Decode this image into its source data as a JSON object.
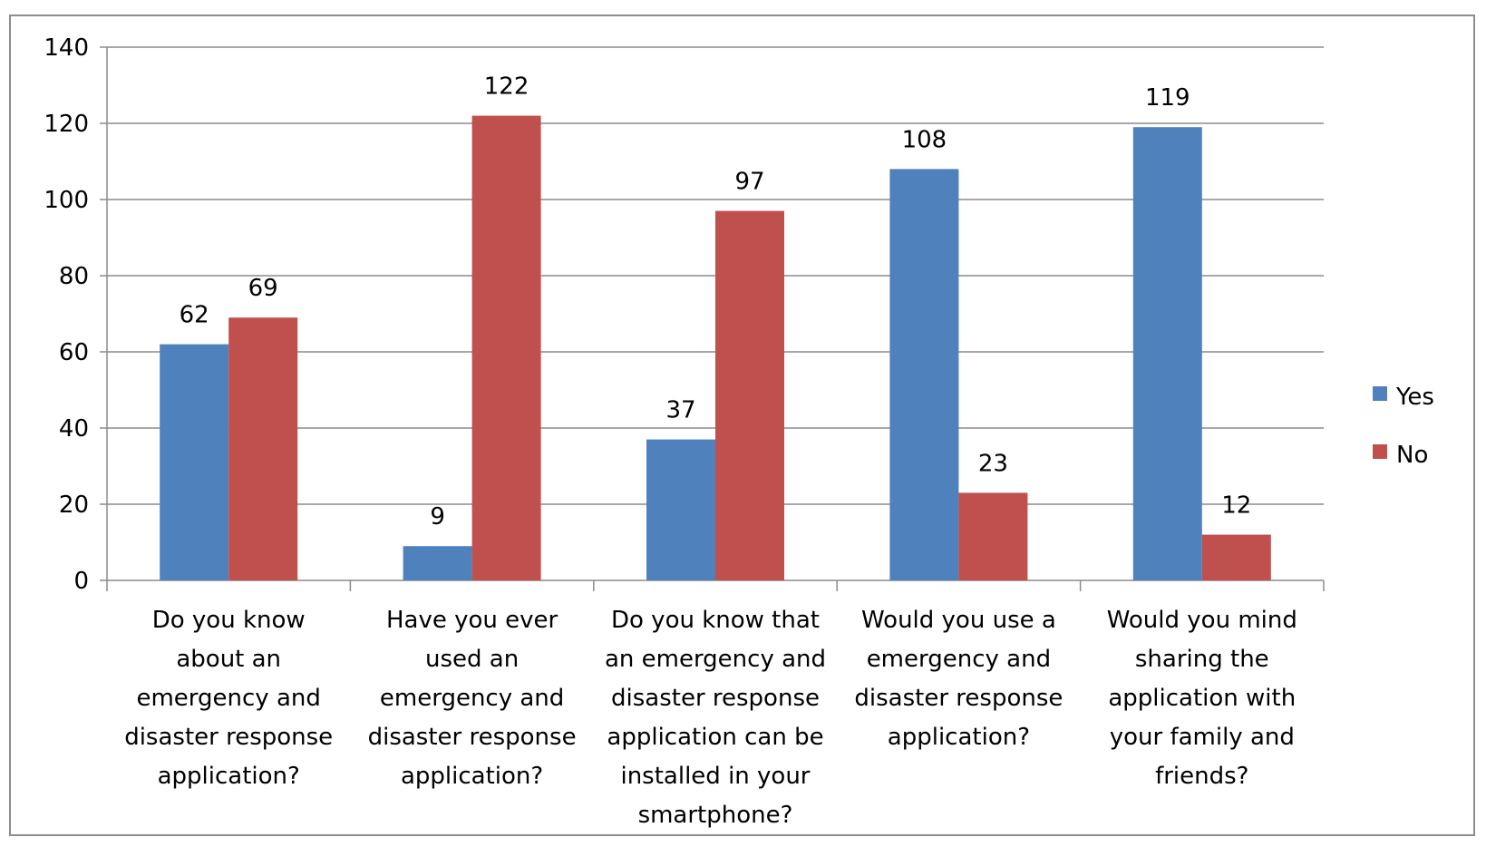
{
  "chart_data": {
    "type": "bar",
    "categories": [
      [
        "Do you know",
        "about an",
        "emergency and",
        "disaster response",
        "application?"
      ],
      [
        "Have you ever",
        "used an",
        "emergency and",
        "disaster response",
        "application?"
      ],
      [
        "Do you know that",
        "an emergency and",
        "disaster response",
        "application can be",
        "installed in your",
        "smartphone?"
      ],
      [
        "Would you use a",
        "emergency and",
        "disaster response",
        "application?"
      ],
      [
        "Would you mind",
        "sharing the",
        "application with",
        "your family and",
        "friends?"
      ]
    ],
    "series": [
      {
        "name": "Yes",
        "values": [
          62,
          9,
          37,
          108,
          119
        ],
        "color": "#4F81BD"
      },
      {
        "name": "No",
        "values": [
          69,
          122,
          97,
          23,
          12
        ],
        "color": "#C0504D"
      }
    ],
    "ylim": [
      0,
      140
    ],
    "yticks": [
      0,
      20,
      40,
      60,
      80,
      100,
      120,
      140
    ],
    "grid": true,
    "legend": "right",
    "title": "",
    "xlabel": "",
    "ylabel": ""
  }
}
